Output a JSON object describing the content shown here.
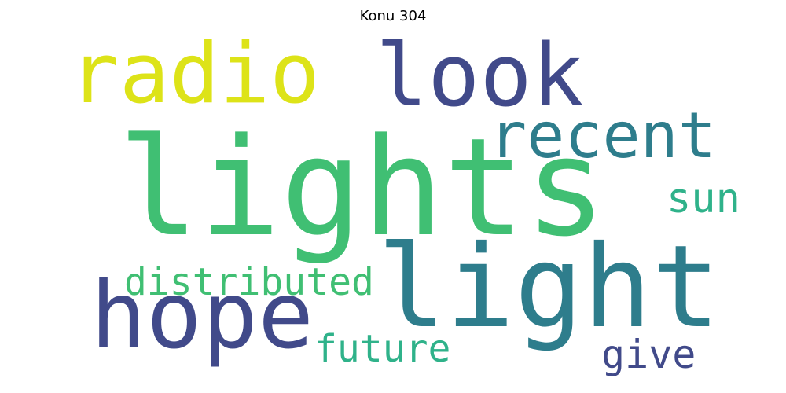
{
  "title": "Konu 304",
  "words": [
    {
      "text": "lights",
      "color": "#40bf73"
    },
    {
      "text": "light",
      "color": "#2e7d8c"
    },
    {
      "text": "hope",
      "color": "#414a8a"
    },
    {
      "text": "radio",
      "color": "#dde318"
    },
    {
      "text": "look",
      "color": "#414a8a"
    },
    {
      "text": "recent",
      "color": "#2e7d8c"
    },
    {
      "text": "sun",
      "color": "#2fb28a"
    },
    {
      "text": "distributed",
      "color": "#40bf73"
    },
    {
      "text": "future",
      "color": "#2fb28a"
    },
    {
      "text": "give",
      "color": "#414a8a"
    }
  ]
}
